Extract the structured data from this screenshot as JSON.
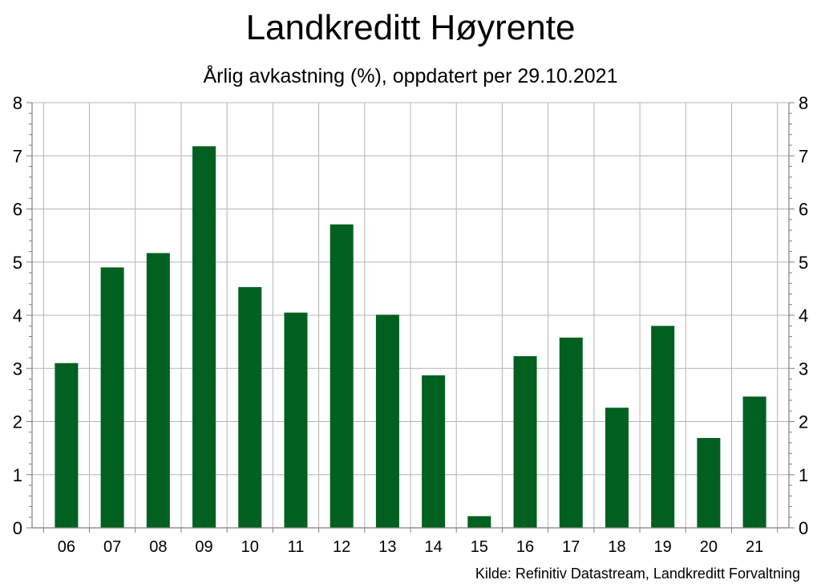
{
  "chart_data": {
    "type": "bar",
    "title": "Landkreditt Høyrente",
    "subtitle": "Årlig avkastning (%), oppdatert per 29.10.2021",
    "source": "Kilde: Refinitiv Datastream, Landkreditt Forvaltning",
    "categories": [
      "06",
      "07",
      "08",
      "09",
      "10",
      "11",
      "12",
      "13",
      "14",
      "15",
      "16",
      "17",
      "18",
      "19",
      "20",
      "21"
    ],
    "values": [
      3.1,
      4.9,
      5.17,
      7.18,
      4.53,
      4.05,
      5.71,
      4.01,
      2.87,
      0.22,
      3.23,
      3.58,
      2.26,
      3.8,
      1.69,
      2.47
    ],
    "xlabel": "",
    "ylabel": "",
    "ylim": [
      0,
      8
    ],
    "yticks": [
      0,
      1,
      2,
      3,
      4,
      5,
      6,
      7,
      8
    ],
    "grid": true,
    "secondary_y_axis": true,
    "bar_color": "#00601f"
  }
}
